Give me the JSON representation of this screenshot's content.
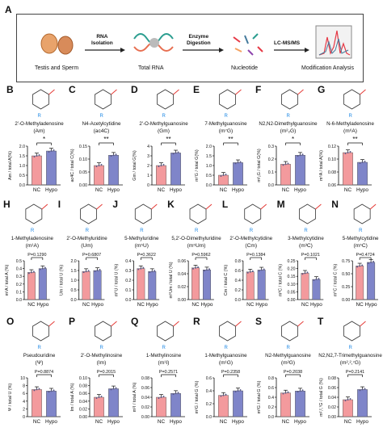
{
  "panel_A": {
    "letter": "A",
    "steps": [
      "Testis and Sperm",
      "Total RNA",
      "Nucleotide",
      "Modification Analysis"
    ],
    "arrows": [
      "RNA\nIsolation",
      "Enzyme\nDigestion",
      "LC-MS/MS"
    ]
  },
  "colors": {
    "nc": "#f39a9d",
    "hypo": "#7f85c9",
    "dot": "#5b5b8a"
  },
  "chart_data": [
    {
      "letter": "B",
      "type": "bar",
      "name": "2'-O-Methyladenosine",
      "abbr": "(Am)",
      "ylabel": "Am / total A(%)",
      "categories": [
        "NC",
        "Hypo"
      ],
      "values": [
        1.5,
        1.75
      ],
      "ylim": [
        0,
        2.0
      ],
      "ticks": [
        "0.0",
        "0.5",
        "1.0",
        "1.5",
        "2.0"
      ],
      "sig": "*"
    },
    {
      "letter": "C",
      "type": "bar",
      "name": "N4-Acetylcytidine",
      "abbr": "(ac4C)",
      "ylabel": "ac4C / total C(%)",
      "categories": [
        "NC",
        "Hypo"
      ],
      "values": [
        0.075,
        0.115
      ],
      "ylim": [
        0,
        0.15
      ],
      "ticks": [
        "0.00",
        "0.05",
        "0.10",
        "0.15"
      ],
      "sig": "**"
    },
    {
      "letter": "D",
      "type": "bar",
      "name": "2'-O-Methylguanosine",
      "abbr": "(Gm)",
      "ylabel": "Gm / total G(%)",
      "categories": [
        "NC",
        "Hypo"
      ],
      "values": [
        2.0,
        3.3
      ],
      "ylim": [
        0,
        4
      ],
      "ticks": [
        "0",
        "1",
        "2",
        "3",
        "4"
      ],
      "sig": "**"
    },
    {
      "letter": "E",
      "type": "bar",
      "name": "7-Methylguanosine",
      "abbr": "(m⁷G)",
      "ylabel": "m⁷G / total G(%)",
      "categories": [
        "NC",
        "Hypo"
      ],
      "values": [
        0.5,
        1.15
      ],
      "ylim": [
        0,
        2.0
      ],
      "ticks": [
        "0.0",
        "0.5",
        "1.0",
        "1.5",
        "2.0"
      ],
      "sig": "**"
    },
    {
      "letter": "F",
      "type": "bar",
      "name": "N2,N2-Dimethylguanosine",
      "abbr": "(m²₂G)",
      "ylabel": "m²₂G / total G(%)",
      "categories": [
        "NC",
        "Hypo"
      ],
      "values": [
        0.16,
        0.23
      ],
      "ylim": [
        0,
        0.3
      ],
      "ticks": [
        "0.0",
        "0.1",
        "0.2",
        "0.3"
      ],
      "sig": "*"
    },
    {
      "letter": "G",
      "type": "bar",
      "name": "N-6-Methyladenosine",
      "abbr": "(m⁶A)",
      "ylabel": "m⁶A / total A(%)",
      "categories": [
        "NC",
        "Hypo"
      ],
      "values": [
        0.11,
        0.095
      ],
      "ylim": [
        0.06,
        0.12
      ],
      "ticks": [
        "0.06",
        "0.08",
        "0.10",
        "0.12"
      ],
      "sig": "**"
    },
    {
      "letter": "H",
      "type": "bar",
      "name": "1-Methyladenosine",
      "abbr": "(m¹A)",
      "ylabel": "m¹A / total A (%)",
      "categories": [
        "NC",
        "Hypo"
      ],
      "values": [
        0.35,
        0.4
      ],
      "ylim": [
        0,
        0.5
      ],
      "ticks": [
        "0.0",
        "0.1",
        "0.2",
        "0.3",
        "0.4",
        "0.5"
      ],
      "sig": "P=0.1290"
    },
    {
      "letter": "I",
      "type": "bar",
      "name": "2'-O-Methyluridine",
      "abbr": "(Um)",
      "ylabel": "Um / total U (%)",
      "categories": [
        "NC",
        "Hypo"
      ],
      "values": [
        1.45,
        1.5
      ],
      "ylim": [
        0,
        2.0
      ],
      "ticks": [
        "0.0",
        "0.5",
        "1.0",
        "1.5",
        "2.0"
      ],
      "sig": "P=0.6807"
    },
    {
      "letter": "J",
      "type": "bar",
      "name": "5-Methyluridine",
      "abbr": "(m⁵U)",
      "ylabel": "m⁵U / total U (%)",
      "categories": [
        "NC",
        "Hypo"
      ],
      "values": [
        0.32,
        0.29
      ],
      "ylim": [
        0,
        0.4
      ],
      "ticks": [
        "0.0",
        "0.1",
        "0.2",
        "0.3",
        "0.4"
      ],
      "sig": "P=0.3622"
    },
    {
      "letter": "K",
      "type": "bar",
      "name": "5,2'-O-Dimethyluridine",
      "abbr": "(m⁵Um)",
      "ylabel": "m⁵Um / total U (%)",
      "categories": [
        "NC",
        "Hypo"
      ],
      "values": [
        0.049,
        0.046
      ],
      "ylim": [
        0,
        0.06
      ],
      "ticks": [
        "0.00",
        "0.02",
        "0.04",
        "0.06"
      ],
      "sig": "P=0.5962"
    },
    {
      "letter": "L",
      "type": "bar",
      "name": "2'-O-Methylcytidine",
      "abbr": "(Cm)",
      "ylabel": "Cm / total C (%)",
      "categories": [
        "NC",
        "Hypo"
      ],
      "values": [
        0.57,
        0.61
      ],
      "ylim": [
        0,
        0.8
      ],
      "ticks": [
        "0.0",
        "0.2",
        "0.4",
        "0.6",
        "0.8"
      ],
      "sig": "P=0.1384"
    },
    {
      "letter": "M",
      "type": "bar",
      "name": "3-Methylcytidine",
      "abbr": "(m³C)",
      "ylabel": "m³C / total C (%)",
      "categories": [
        "NC",
        "Hypo"
      ],
      "values": [
        0.17,
        0.13
      ],
      "ylim": [
        0,
        0.25
      ],
      "ticks": [
        "0.00",
        "0.05",
        "0.10",
        "0.15",
        "0.20",
        "0.25"
      ],
      "sig": "P=0.1021"
    },
    {
      "letter": "N",
      "type": "bar",
      "name": "5-Methylcytidine",
      "abbr": "(m⁵C)",
      "ylabel": "m⁵C / total C (%)",
      "categories": [
        "NC",
        "Hypo"
      ],
      "values": [
        0.65,
        0.72
      ],
      "ylim": [
        0,
        0.75
      ],
      "ticks": [
        "0.00",
        "0.25",
        "0.50",
        "0.75"
      ],
      "sig": "P=0.4724"
    },
    {
      "letter": "O",
      "type": "bar",
      "name": "Pseudouridine",
      "abbr": "(Ψ)",
      "ylabel": "Ψ / total U (%)",
      "categories": [
        "NC",
        "Hypo"
      ],
      "values": [
        7.0,
        6.6
      ],
      "ylim": [
        0,
        10
      ],
      "ticks": [
        "0",
        "2",
        "4",
        "6",
        "8",
        "10"
      ],
      "sig": "P=0.8874"
    },
    {
      "letter": "P",
      "type": "bar",
      "name": "2'-O-Methylinosine",
      "abbr": "(Im)",
      "ylabel": "Im / total A (%)",
      "categories": [
        "NC",
        "Hypo"
      ],
      "values": [
        0.05,
        0.072
      ],
      "ylim": [
        0,
        0.1
      ],
      "ticks": [
        "0.00",
        "0.02",
        "0.04",
        "0.06",
        "0.08",
        "0.10"
      ],
      "sig": "P=0.2015"
    },
    {
      "letter": "Q",
      "type": "bar",
      "name": "1-Methylinosine",
      "abbr": "(m¹I)",
      "ylabel": "m¹I / total A (%)",
      "categories": [
        "NC",
        "Hypo"
      ],
      "values": [
        0.04,
        0.048
      ],
      "ylim": [
        0,
        0.08
      ],
      "ticks": [
        "0.00",
        "0.02",
        "0.04",
        "0.06",
        "0.08"
      ],
      "sig": "P=0.2571"
    },
    {
      "letter": "R",
      "type": "bar",
      "name": "1-Methylguanosine",
      "abbr": "(m¹G)",
      "ylabel": "m¹G / total G (%)",
      "categories": [
        "NC",
        "Hypo"
      ],
      "values": [
        0.33,
        0.4
      ],
      "ylim": [
        0,
        0.6
      ],
      "ticks": [
        "0.0",
        "0.2",
        "0.4",
        "0.6"
      ],
      "sig": "P=0.2358"
    },
    {
      "letter": "S",
      "type": "bar",
      "name": "N2-Methylguanosine",
      "abbr": "(m²G)",
      "ylabel": "m²G / total G (%)",
      "categories": [
        "NC",
        "Hypo"
      ],
      "values": [
        0.49,
        0.53
      ],
      "ylim": [
        0,
        0.8
      ],
      "ticks": [
        "0.0",
        "0.2",
        "0.4",
        "0.6",
        "0.8"
      ],
      "sig": "P=0.2038"
    },
    {
      "letter": "T",
      "type": "bar",
      "name": "N2,N2,7-Trimethylguanosine",
      "abbr": "(m²,²,⁷G)",
      "ylabel": "m²,²,⁷G / total G (%)",
      "categories": [
        "NC",
        "Hypo"
      ],
      "values": [
        0.035,
        0.056
      ],
      "ylim": [
        0,
        0.08
      ],
      "ticks": [
        "0.00",
        "0.02",
        "0.04",
        "0.06",
        "0.08"
      ],
      "sig": "P=0.2141"
    }
  ]
}
